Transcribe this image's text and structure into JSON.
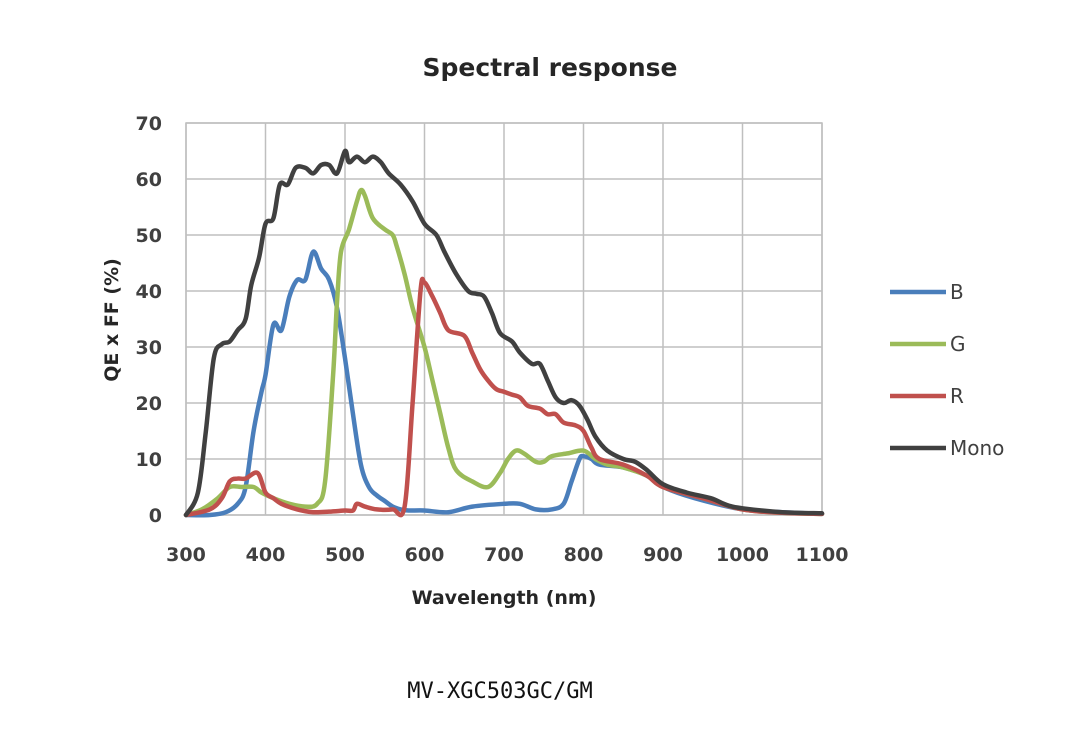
{
  "chart_data": {
    "type": "line",
    "title": "Spectral response",
    "xlabel": "Wavelength (nm)",
    "ylabel": "QE x FF (%)",
    "xlim": [
      300,
      1100
    ],
    "ylim": [
      0,
      70
    ],
    "xticks": [
      300,
      400,
      500,
      600,
      700,
      800,
      900,
      1000,
      1100
    ],
    "yticks": [
      0,
      10,
      20,
      30,
      40,
      50,
      60,
      70
    ],
    "grid": true,
    "legend": "right",
    "series": [
      {
        "name": "B",
        "color": "#4a7ebb",
        "points": [
          [
            300,
            0
          ],
          [
            330,
            0
          ],
          [
            350,
            0.5
          ],
          [
            365,
            2
          ],
          [
            375,
            5
          ],
          [
            385,
            15
          ],
          [
            395,
            22
          ],
          [
            400,
            25
          ],
          [
            410,
            34
          ],
          [
            420,
            33
          ],
          [
            430,
            39
          ],
          [
            440,
            42
          ],
          [
            450,
            42
          ],
          [
            460,
            47
          ],
          [
            470,
            44
          ],
          [
            480,
            42
          ],
          [
            490,
            37
          ],
          [
            500,
            28
          ],
          [
            510,
            18
          ],
          [
            520,
            9
          ],
          [
            530,
            5
          ],
          [
            540,
            3.5
          ],
          [
            550,
            2.5
          ],
          [
            560,
            1.5
          ],
          [
            570,
            1
          ],
          [
            580,
            0.8
          ],
          [
            600,
            0.8
          ],
          [
            630,
            0.5
          ],
          [
            660,
            1.5
          ],
          [
            700,
            2
          ],
          [
            720,
            2
          ],
          [
            740,
            1
          ],
          [
            760,
            1
          ],
          [
            775,
            2
          ],
          [
            785,
            6
          ],
          [
            795,
            10
          ],
          [
            800,
            10.5
          ],
          [
            810,
            10
          ],
          [
            820,
            9
          ],
          [
            850,
            8.5
          ],
          [
            880,
            7
          ],
          [
            900,
            5
          ],
          [
            940,
            3
          ],
          [
            1000,
            1
          ],
          [
            1050,
            0.5
          ],
          [
            1100,
            0.2
          ]
        ]
      },
      {
        "name": "G",
        "color": "#9bbb59",
        "points": [
          [
            300,
            0
          ],
          [
            320,
            1
          ],
          [
            340,
            3
          ],
          [
            355,
            5
          ],
          [
            370,
            5
          ],
          [
            385,
            5
          ],
          [
            395,
            4
          ],
          [
            410,
            3
          ],
          [
            430,
            2
          ],
          [
            450,
            1.5
          ],
          [
            465,
            2
          ],
          [
            475,
            6
          ],
          [
            485,
            25
          ],
          [
            490,
            38
          ],
          [
            495,
            47
          ],
          [
            505,
            51
          ],
          [
            515,
            56
          ],
          [
            520,
            58
          ],
          [
            525,
            57
          ],
          [
            535,
            53
          ],
          [
            550,
            51
          ],
          [
            560,
            50
          ],
          [
            565,
            48
          ],
          [
            575,
            43
          ],
          [
            585,
            37
          ],
          [
            600,
            30
          ],
          [
            610,
            24
          ],
          [
            620,
            18
          ],
          [
            630,
            12
          ],
          [
            640,
            8
          ],
          [
            660,
            6
          ],
          [
            680,
            5
          ],
          [
            695,
            7.5
          ],
          [
            705,
            10
          ],
          [
            715,
            11.5
          ],
          [
            725,
            11
          ],
          [
            740,
            9.5
          ],
          [
            750,
            9.5
          ],
          [
            760,
            10.5
          ],
          [
            780,
            11
          ],
          [
            800,
            11.5
          ],
          [
            815,
            10
          ],
          [
            830,
            9
          ],
          [
            850,
            8.5
          ],
          [
            880,
            7
          ],
          [
            900,
            5
          ],
          [
            950,
            3
          ],
          [
            1000,
            1
          ],
          [
            1050,
            0.4
          ],
          [
            1100,
            0.2
          ]
        ]
      },
      {
        "name": "R",
        "color": "#c0504d",
        "points": [
          [
            300,
            0
          ],
          [
            330,
            1
          ],
          [
            345,
            3
          ],
          [
            355,
            6
          ],
          [
            365,
            6.5
          ],
          [
            375,
            6.5
          ],
          [
            390,
            7.5
          ],
          [
            400,
            4
          ],
          [
            410,
            3
          ],
          [
            420,
            2
          ],
          [
            440,
            1
          ],
          [
            460,
            0.5
          ],
          [
            480,
            0.6
          ],
          [
            500,
            0.8
          ],
          [
            510,
            0.8
          ],
          [
            515,
            2
          ],
          [
            525,
            1.5
          ],
          [
            540,
            1
          ],
          [
            560,
            1
          ],
          [
            575,
            1.5
          ],
          [
            585,
            20
          ],
          [
            595,
            40
          ],
          [
            600,
            41.5
          ],
          [
            610,
            39
          ],
          [
            620,
            36
          ],
          [
            630,
            33
          ],
          [
            650,
            32
          ],
          [
            660,
            29
          ],
          [
            670,
            26
          ],
          [
            680,
            24
          ],
          [
            690,
            22.5
          ],
          [
            700,
            22
          ],
          [
            710,
            21.5
          ],
          [
            720,
            21
          ],
          [
            730,
            19.5
          ],
          [
            745,
            19
          ],
          [
            755,
            18
          ],
          [
            765,
            18
          ],
          [
            775,
            16.5
          ],
          [
            790,
            16
          ],
          [
            800,
            15
          ],
          [
            810,
            12
          ],
          [
            820,
            10
          ],
          [
            850,
            9
          ],
          [
            880,
            7
          ],
          [
            900,
            5
          ],
          [
            950,
            3
          ],
          [
            1000,
            1
          ],
          [
            1050,
            0.4
          ],
          [
            1100,
            0.2
          ]
        ]
      },
      {
        "name": "Mono",
        "color": "#404040",
        "points": [
          [
            300,
            0
          ],
          [
            315,
            4
          ],
          [
            325,
            15
          ],
          [
            335,
            28
          ],
          [
            345,
            30.5
          ],
          [
            355,
            31
          ],
          [
            365,
            33
          ],
          [
            375,
            35
          ],
          [
            382,
            41
          ],
          [
            392,
            46
          ],
          [
            400,
            52
          ],
          [
            410,
            53
          ],
          [
            418,
            59
          ],
          [
            428,
            59
          ],
          [
            438,
            62
          ],
          [
            450,
            62
          ],
          [
            460,
            61
          ],
          [
            470,
            62.5
          ],
          [
            480,
            62.5
          ],
          [
            490,
            61
          ],
          [
            500,
            65
          ],
          [
            505,
            63
          ],
          [
            515,
            64
          ],
          [
            525,
            63
          ],
          [
            535,
            64
          ],
          [
            545,
            63
          ],
          [
            555,
            61
          ],
          [
            570,
            59
          ],
          [
            585,
            56
          ],
          [
            600,
            52
          ],
          [
            615,
            50
          ],
          [
            625,
            47
          ],
          [
            640,
            43
          ],
          [
            655,
            40
          ],
          [
            665,
            39.5
          ],
          [
            675,
            39
          ],
          [
            685,
            36
          ],
          [
            695,
            32.5
          ],
          [
            710,
            31
          ],
          [
            720,
            29
          ],
          [
            735,
            27
          ],
          [
            745,
            27
          ],
          [
            755,
            24
          ],
          [
            765,
            21
          ],
          [
            775,
            20
          ],
          [
            785,
            20.5
          ],
          [
            795,
            19.5
          ],
          [
            805,
            17
          ],
          [
            815,
            14
          ],
          [
            830,
            11.5
          ],
          [
            850,
            10
          ],
          [
            865,
            9.5
          ],
          [
            880,
            8
          ],
          [
            900,
            5.5
          ],
          [
            930,
            4
          ],
          [
            960,
            3
          ],
          [
            980,
            1.8
          ],
          [
            1000,
            1.2
          ],
          [
            1050,
            0.5
          ],
          [
            1100,
            0.3
          ]
        ]
      }
    ]
  },
  "caption": "MV-XGC503GC/GM"
}
